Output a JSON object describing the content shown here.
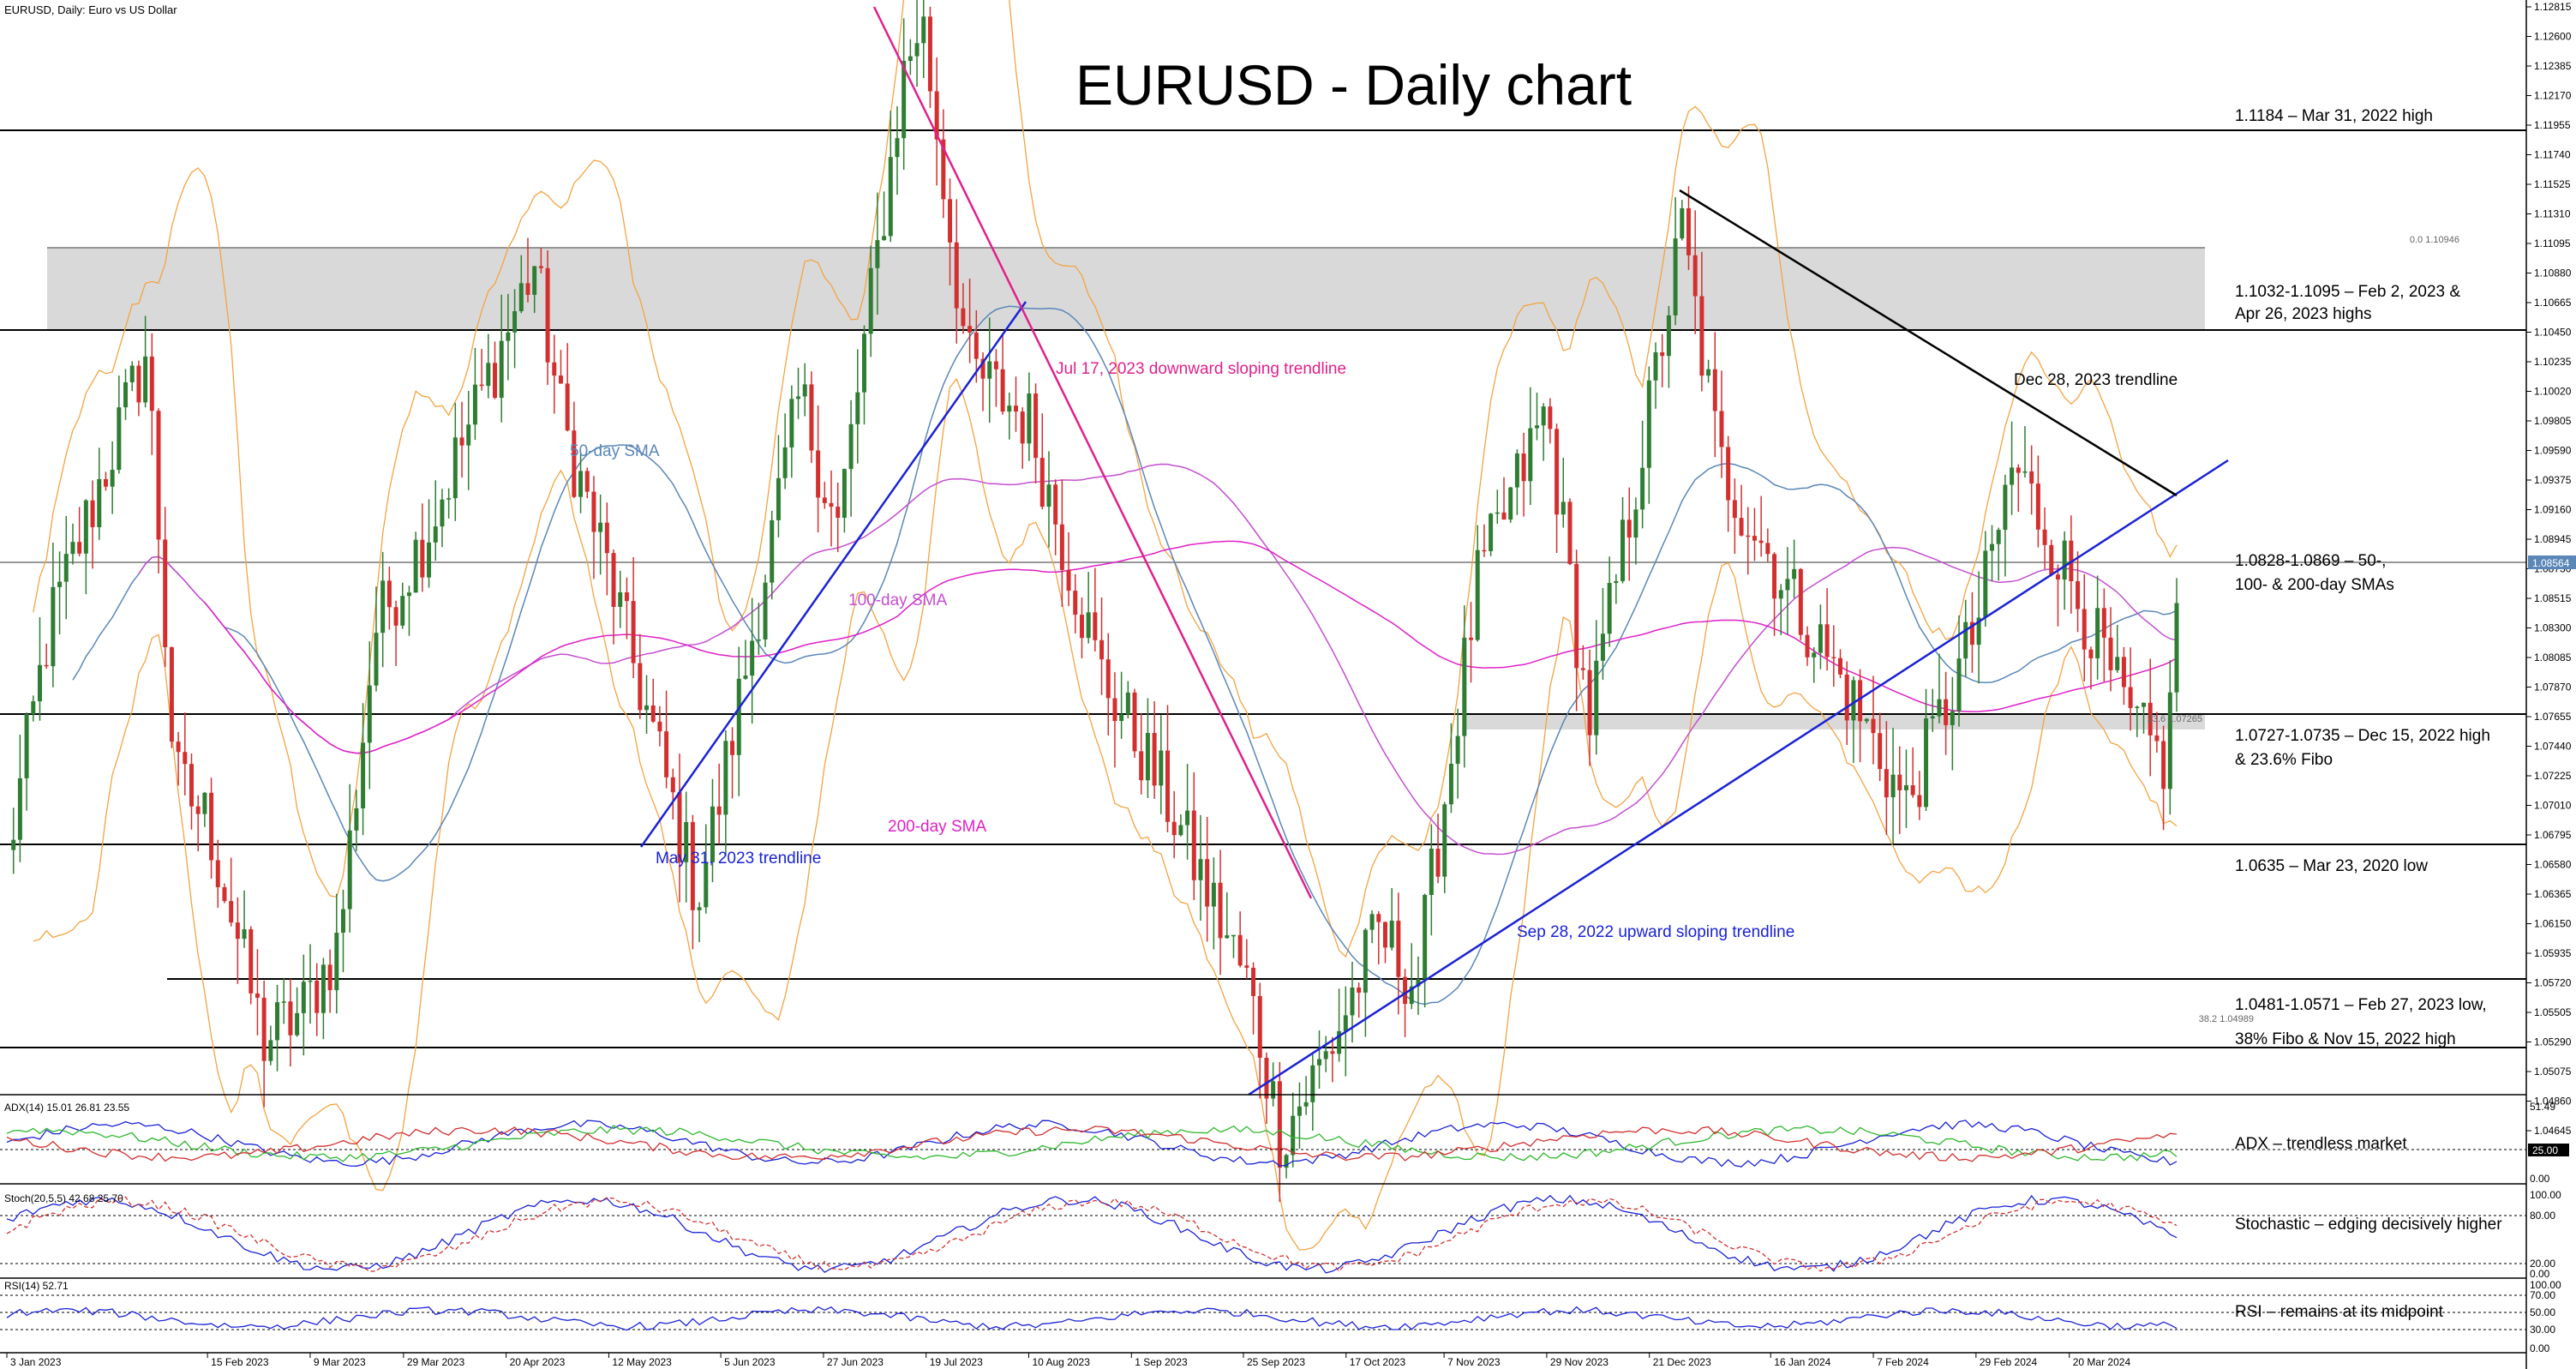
{
  "header": {
    "symbol_label": "EURUSD, Daily:  Euro vs US Dollar",
    "title": "EURUSD - Daily chart"
  },
  "colors": {
    "up_candle": "#2e7d32",
    "down_candle": "#d32f2f",
    "sma50": "#5b87b8",
    "sma100": "#c44fd1",
    "sma200": "#e020c8",
    "bollinger": "#f4a341",
    "trend_blue": "#1a22d6",
    "trend_pink": "#e0208c",
    "trend_black": "#000000",
    "zone_fill": "#d9d9d9"
  },
  "price_axis": {
    "ticks": [
      "1.12815",
      "1.12600",
      "1.12385",
      "1.12170",
      "1.11955",
      "1.11740",
      "1.11525",
      "1.11310",
      "1.11095",
      "1.10880",
      "1.10665",
      "1.10450",
      "1.10235",
      "1.10020",
      "1.09805",
      "1.09590",
      "1.09375",
      "1.09160",
      "1.08945",
      "1.08730",
      "1.08515",
      "1.08300",
      "1.08085",
      "1.07870",
      "1.07655",
      "1.07440",
      "1.07225",
      "1.07010",
      "1.06795",
      "1.06580",
      "1.06365",
      "1.06150",
      "1.05935",
      "1.05720",
      "1.05505",
      "1.05290",
      "1.05075",
      "1.04860",
      "1.04645"
    ],
    "current_price": "1.08564",
    "fib_0": "0.0 1.10946",
    "fib_236": "23.6 1.07265",
    "fib_382": "38.2 1.04989"
  },
  "date_axis": [
    "3 Jan 2023",
    "15 Feb 2023",
    "9 Mar 2023",
    "29 Mar 2023",
    "20 Apr 2023",
    "12 May 2023",
    "5 Jun 2023",
    "27 Jun 2023",
    "19 Jul 2023",
    "10 Aug 2023",
    "1 Sep 2023",
    "25 Sep 2023",
    "17 Oct 2023",
    "7 Nov 2023",
    "29 Nov 2023",
    "21 Dec 2023",
    "16 Jan 2024",
    "7 Feb 2024",
    "29 Feb 2024",
    "20 Mar 2024"
  ],
  "levels": {
    "l1": "1.1184 – Mar 31, 2022 high",
    "l2a": "1.1032-1.1095 – Feb 2, 2023 &",
    "l2b": "Apr 26, 2023 highs",
    "l3a": "1.0828-1.0869 – 50-,",
    "l3b": "100- & 200-day SMAs",
    "l4a": "1.0727-1.0735 – Dec 15, 2022 high",
    "l4b": "& 23.6% Fibo",
    "l5": "1.0635 – Mar 23, 2020 low",
    "l6": "1.0481-1.0571 – Feb 27, 2023 low,",
    "l7": "38% Fibo & Nov 15, 2022 high"
  },
  "annotations": {
    "sma50": "50-day SMA",
    "sma100": "100-day SMA",
    "sma200": "200-day SMA",
    "tl_may": "May 31, 2023 trendline",
    "tl_jul": "Jul 17, 2023 downward sloping trendline",
    "tl_sep": "Sep 28, 2022 upward sloping trendline",
    "tl_dec": "Dec 28, 2023 trendline"
  },
  "indicators": {
    "adx": {
      "label": "ADX(14) 15.01 26.81 23.55",
      "note": "ADX – trendless market",
      "ticks": [
        "51.49",
        "25.00",
        "0.00"
      ]
    },
    "stoch": {
      "label": "Stoch(20,5,5) 42.68 25.70",
      "note": "Stochastic – edging decisively higher",
      "ticks": [
        "100.00",
        "80.00",
        "20.00",
        "0.00"
      ]
    },
    "rsi": {
      "label": "RSI(14) 52.71",
      "note": "RSI – remains at its midpoint",
      "ticks": [
        "100.00",
        "70.00",
        "50.00",
        "30.00",
        "0.00"
      ]
    }
  },
  "chart_data": {
    "type": "candlestick",
    "title": "EURUSD - Daily chart",
    "ylim": [
      1.0443,
      1.1292
    ],
    "x_range": [
      "3 Jan 2023",
      "12 Apr 2024"
    ],
    "grid": false,
    "price_path": [
      [
        "3 Jan 2023",
        1.066
      ],
      [
        "12 Jan 2023",
        1.083
      ],
      [
        "2 Feb 2023",
        1.1032
      ],
      [
        "8 Feb 2023",
        1.072
      ],
      [
        "15 Feb 2023",
        1.069
      ],
      [
        "27 Feb 2023",
        1.053
      ],
      [
        "7 Mar 2023",
        1.055
      ],
      [
        "15 Mar 2023",
        1.06
      ],
      [
        "23 Mar 2023",
        1.083
      ],
      [
        "3 Apr 2023",
        1.09
      ],
      [
        "26 Apr 2023",
        1.1095
      ],
      [
        "2 May 2023",
        1.098
      ],
      [
        "12 May 2023",
        1.087
      ],
      [
        "31 May 2023",
        1.0635
      ],
      [
        "5 Jun 2023",
        1.071
      ],
      [
        "22 Jun 2023",
        1.1
      ],
      [
        "30 Jun 2023",
        1.09
      ],
      [
        "14 Jul 2023",
        1.123
      ],
      [
        "18 Jul 2023",
        1.1276
      ],
      [
        "28 Jul 2023",
        1.102
      ],
      [
        "10 Aug 2023",
        1.098
      ],
      [
        "25 Aug 2023",
        1.08
      ],
      [
        "8 Sep 2023",
        1.071
      ],
      [
        "26 Sep 2023",
        1.057
      ],
      [
        "3 Oct 2023",
        1.046
      ],
      [
        "13 Oct 2023",
        1.052
      ],
      [
        "24 Oct 2023",
        1.061
      ],
      [
        "1 Nov 2023",
        1.057
      ],
      [
        "14 Nov 2023",
        1.086
      ],
      [
        "29 Nov 2023",
        1.099
      ],
      [
        "8 Dec 2023",
        1.076
      ],
      [
        "20 Dec 2023",
        1.097
      ],
      [
        "28 Dec 2023",
        1.112
      ],
      [
        "5 Jan 2024",
        1.095
      ],
      [
        "16 Jan 2024",
        1.088
      ],
      [
        "2 Feb 2024",
        1.078
      ],
      [
        "14 Feb 2024",
        1.07
      ],
      [
        "29 Feb 2024",
        1.083
      ],
      [
        "8 Mar 2024",
        1.095
      ],
      [
        "21 Mar 2024",
        1.086
      ],
      [
        "2 Apr 2024",
        1.076
      ],
      [
        "10 Apr 2024",
        1.073
      ],
      [
        "12 Apr 2024",
        1.0856
      ]
    ]
  }
}
